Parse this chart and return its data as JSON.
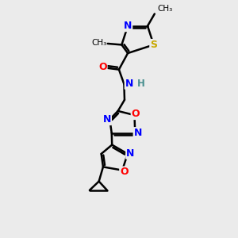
{
  "bg_color": "#ebebeb",
  "bond_color": "#000000",
  "bond_width": 1.8,
  "atoms": {
    "S": "#c8a800",
    "N": "#0000ff",
    "O": "#ff0000",
    "C": "#000000",
    "H": "#4a9090"
  },
  "figsize": [
    3.0,
    3.0
  ],
  "dpi": 100,
  "xlim": [
    0,
    10
  ],
  "ylim": [
    0,
    10
  ]
}
